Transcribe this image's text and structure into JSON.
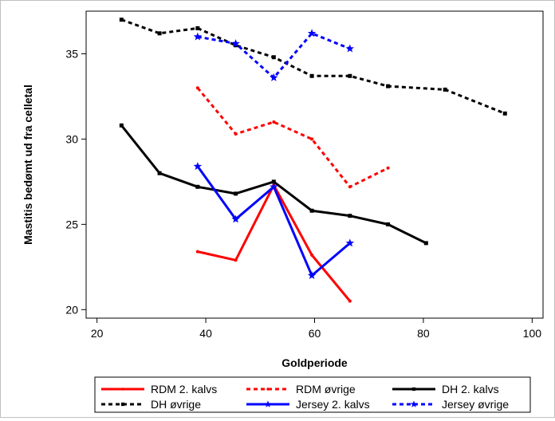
{
  "chart_data": {
    "type": "line",
    "title": "",
    "xlabel": "Goldperiode",
    "ylabel": "Mastitis bedømt ud fra celletal",
    "xlim": [
      18,
      102
    ],
    "ylim": [
      19.5,
      37.5
    ],
    "xticks": [
      20,
      40,
      60,
      80,
      100
    ],
    "yticks": [
      20,
      25,
      30,
      35
    ],
    "grid": false,
    "legend_position": "bottom",
    "series": [
      {
        "name": "RDM 2. kalvs",
        "color": "#ff0000",
        "dash": "solid",
        "marker": "dot",
        "x": [
          38.5,
          45.5,
          52.5,
          59.5,
          66.5
        ],
        "y": [
          23.4,
          22.9,
          27.3,
          23.2,
          20.5
        ]
      },
      {
        "name": "RDM øvrige",
        "color": "#ff0000",
        "dash": "dotted",
        "marker": "dot",
        "x": [
          38.5,
          45.5,
          52.5,
          59.5,
          66.5,
          73.5
        ],
        "y": [
          33.0,
          30.3,
          31.0,
          30.0,
          27.2,
          28.3
        ]
      },
      {
        "name": "DH 2. kalvs",
        "color": "#000000",
        "dash": "solid",
        "marker": "square",
        "x": [
          24.5,
          31.5,
          38.5,
          45.5,
          52.5,
          59.5,
          66.5,
          73.5,
          80.5
        ],
        "y": [
          30.8,
          28.0,
          27.2,
          26.8,
          27.5,
          25.8,
          25.5,
          25.0,
          23.9
        ]
      },
      {
        "name": "DH øvrige",
        "color": "#000000",
        "dash": "dotted",
        "marker": "square",
        "x": [
          24.5,
          31.5,
          38.5,
          45.5,
          52.5,
          59.5,
          66.5,
          73.5,
          84.0,
          95.0
        ],
        "y": [
          37.0,
          36.2,
          36.5,
          35.5,
          34.8,
          33.7,
          33.7,
          33.1,
          32.9,
          31.5
        ]
      },
      {
        "name": "Jersey 2. kalvs",
        "color": "#0000ff",
        "dash": "solid",
        "marker": "star",
        "x": [
          38.5,
          45.5,
          52.5,
          59.5,
          66.5
        ],
        "y": [
          28.4,
          25.3,
          27.2,
          22.0,
          23.9
        ]
      },
      {
        "name": "Jersey øvrige",
        "color": "#0000ff",
        "dash": "dotted",
        "marker": "star",
        "x": [
          38.5,
          45.5,
          52.5,
          59.5,
          66.5
        ],
        "y": [
          36.0,
          35.6,
          33.6,
          36.2,
          35.3
        ]
      }
    ]
  }
}
